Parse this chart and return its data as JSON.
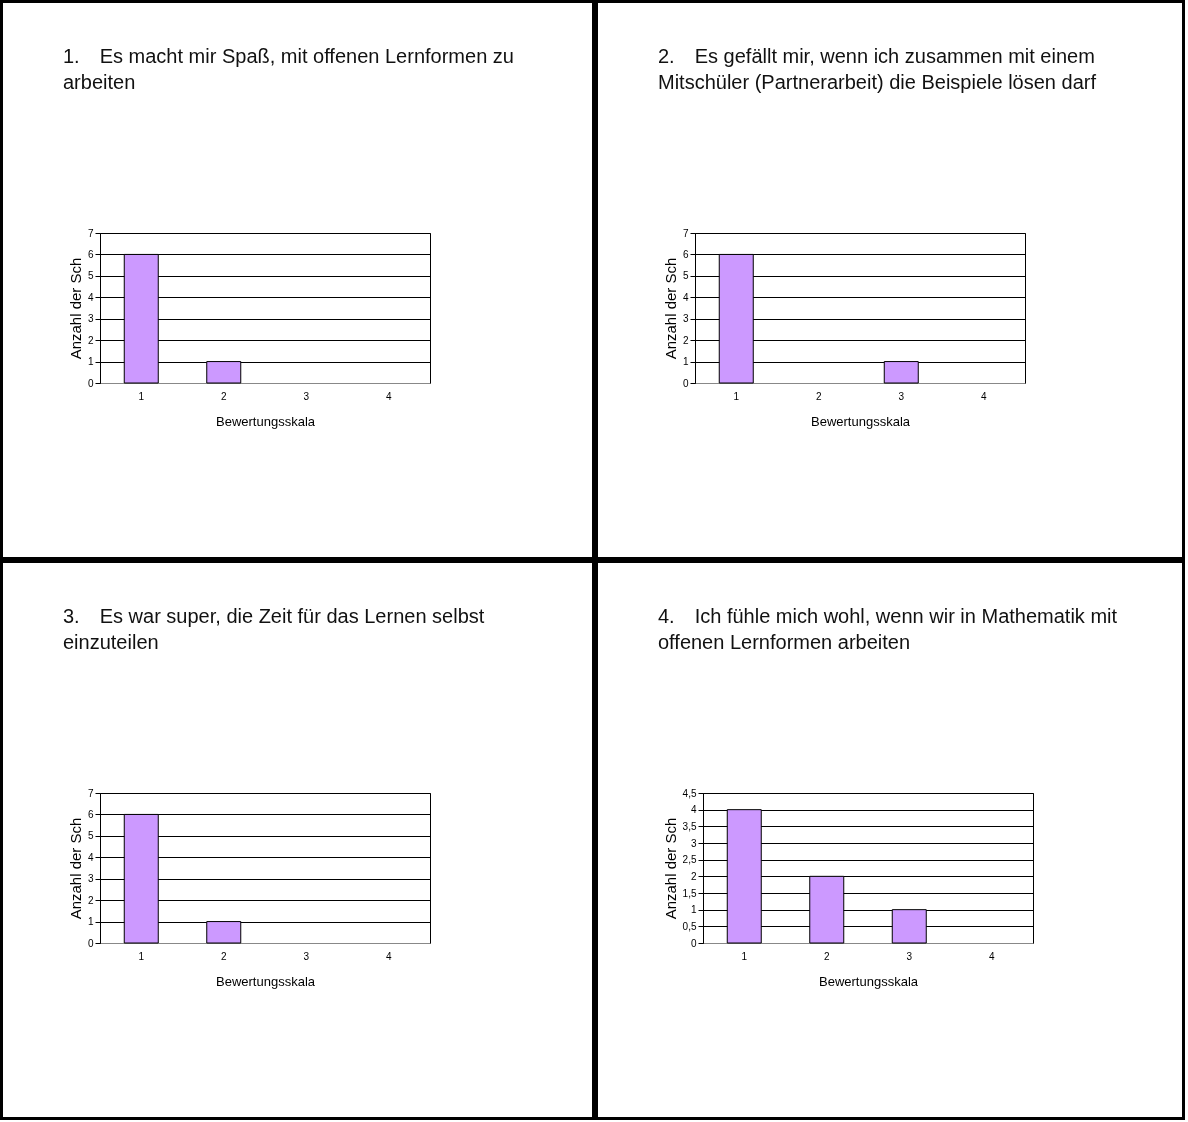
{
  "chart_data": [
    {
      "type": "bar",
      "title": "1. Es macht mir Spaß, mit offenen Lernformen zu arbeiten",
      "xlabel": "Bewertungsskala",
      "ylabel": "Anzahl der Sch",
      "categories": [
        "1",
        "2",
        "3",
        "4"
      ],
      "values": [
        6,
        1,
        0,
        0
      ],
      "color": "#cc99ff",
      "ylim": [
        0,
        7
      ],
      "yticks": [
        0,
        1,
        2,
        3,
        4,
        5,
        6,
        7
      ],
      "grid": "y"
    },
    {
      "type": "bar",
      "title": "2. Es gefällt mir, wenn ich zusammen mit einem Mitschüler (Partnerarbeit) die Beispiele lösen darf",
      "xlabel": "Bewertungsskala",
      "ylabel": "Anzahl der Sch",
      "categories": [
        "1",
        "2",
        "3",
        "4"
      ],
      "values": [
        6,
        0,
        1,
        0
      ],
      "color": "#cc99ff",
      "ylim": [
        0,
        7
      ],
      "yticks": [
        0,
        1,
        2,
        3,
        4,
        5,
        6,
        7
      ],
      "grid": "y"
    },
    {
      "type": "bar",
      "title": "3. Es war super, die Zeit für das Lernen selbst einzuteilen",
      "xlabel": "Bewertungsskala",
      "ylabel": "Anzahl der Sch",
      "categories": [
        "1",
        "2",
        "3",
        "4"
      ],
      "values": [
        6,
        1,
        0,
        0
      ],
      "color": "#cc99ff",
      "ylim": [
        0,
        7
      ],
      "yticks": [
        0,
        1,
        2,
        3,
        4,
        5,
        6,
        7
      ],
      "grid": "y"
    },
    {
      "type": "bar",
      "title": "4. Ich fühle mich wohl, wenn wir in Mathematik mit offenen Lernformen arbeiten",
      "xlabel": "Bewertungsskala",
      "ylabel": "Anzahl der Sch",
      "categories": [
        "1",
        "2",
        "3",
        "4"
      ],
      "values": [
        4,
        2,
        1,
        0
      ],
      "color": "#cc99ff",
      "ylim": [
        0,
        4.5
      ],
      "yticks": [
        0,
        {
          "value": 0.5,
          "label": "0,5"
        },
        1,
        {
          "value": 1.5,
          "label": "1,5"
        },
        2,
        {
          "value": 2.5,
          "label": "2,5"
        },
        3,
        {
          "value": 3.5,
          "label": "3,5"
        },
        4,
        {
          "value": 4.5,
          "label": "4,5"
        }
      ],
      "grid": "y"
    }
  ]
}
